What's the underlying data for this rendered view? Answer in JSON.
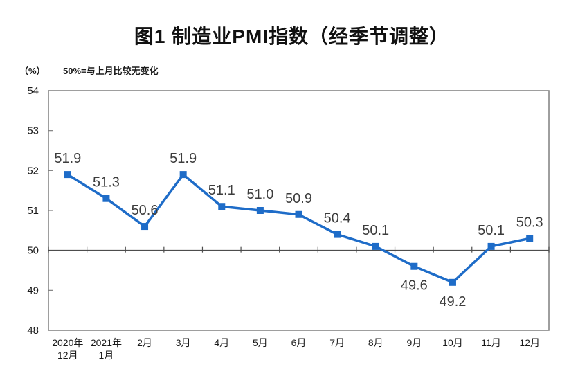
{
  "chart_data": {
    "type": "line",
    "title": "图1 制造业PMI指数（经季节调整）",
    "y_unit_label": "（%）",
    "annotation": "50%=与上月比较无变化",
    "categories": [
      "2020年\n12月",
      "2021年\n1月",
      "2月",
      "3月",
      "4月",
      "5月",
      "6月",
      "7月",
      "8月",
      "9月",
      "10月",
      "11月",
      "12月"
    ],
    "values": [
      51.9,
      51.3,
      50.6,
      51.9,
      51.1,
      51.0,
      50.9,
      50.4,
      50.1,
      49.6,
      49.2,
      50.1,
      50.3
    ],
    "ylim": [
      48,
      54
    ],
    "yticks": [
      48,
      49,
      50,
      51,
      52,
      53,
      54
    ],
    "reference_line": 50,
    "grid": "off",
    "legend": "none",
    "labels_below_indices": [
      9,
      10
    ],
    "colors": {
      "line": "#1e6cc8",
      "marker": "#1e6cc8",
      "data_label": "#3d3d3d",
      "frame": "#7f7f7f",
      "reference_line": "#4d4d4d",
      "axis_text": "#1a1a1a",
      "background": "#ffffff"
    }
  }
}
